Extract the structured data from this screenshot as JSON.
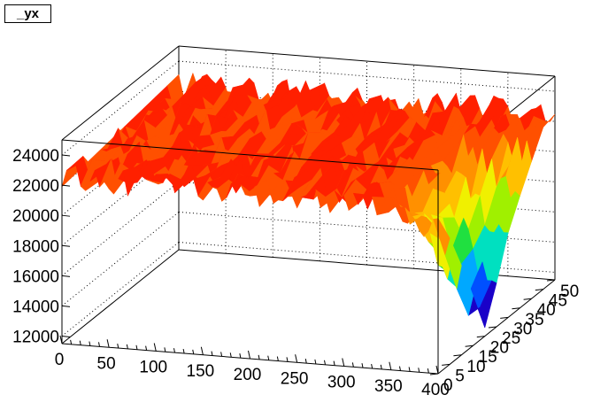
{
  "title": "_yx",
  "chart_data": {
    "type": "surface",
    "title": "_yx",
    "xlabel": "",
    "ylabel": "",
    "zlabel": "",
    "xlim": [
      0,
      400
    ],
    "ylim": [
      0,
      50
    ],
    "zlim": [
      11500,
      25000
    ],
    "x_ticks": [
      "0",
      "50",
      "100",
      "150",
      "200",
      "250",
      "300",
      "350",
      "400"
    ],
    "y_ticks": [
      "0",
      "5",
      "10",
      "15",
      "20",
      "25",
      "30",
      "35",
      "40",
      "45",
      "50"
    ],
    "z_ticks": [
      "12000",
      "14000",
      "16000",
      "18000",
      "20000",
      "22000",
      "24000"
    ],
    "grid": true,
    "palette": [
      "#1a00c8",
      "#0050ff",
      "#00a8ff",
      "#00e0c0",
      "#20e040",
      "#a0f000",
      "#f0f000",
      "#ffc000",
      "#ff9000",
      "#ff5000",
      "#ff2000"
    ],
    "plateau_level": 22500,
    "plateau_noise": 1800,
    "valley": {
      "x": 400,
      "y": 20,
      "min": 12800
    }
  }
}
